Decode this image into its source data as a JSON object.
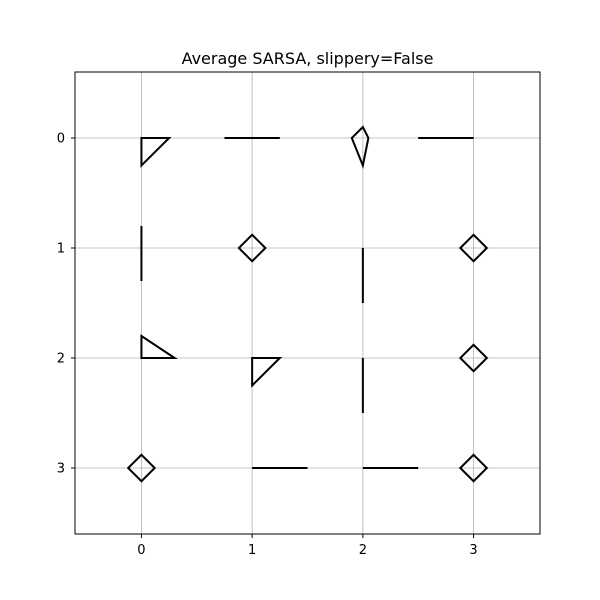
{
  "chart_data": {
    "type": "policy-grid",
    "title": "Average SARSA, slippery=False",
    "xlim": [
      -0.6,
      3.6
    ],
    "ylim": [
      -0.6,
      3.6
    ],
    "y_inverted": true,
    "grid": true,
    "x_ticks": [
      0,
      1,
      2,
      3
    ],
    "y_ticks": [
      0,
      1,
      2,
      3
    ],
    "x_tick_labels": [
      "0",
      "1",
      "2",
      "3"
    ],
    "y_tick_labels": [
      "0",
      "1",
      "2",
      "3"
    ],
    "cells": [
      {
        "row": 0,
        "col": 0,
        "shape": "polygon",
        "pts": [
          [
            0,
            0
          ],
          [
            0.25,
            0
          ],
          [
            0,
            0.25
          ]
        ]
      },
      {
        "row": 0,
        "col": 1,
        "shape": "polygon",
        "pts": [
          [
            -0.25,
            0
          ],
          [
            0.25,
            0
          ]
        ]
      },
      {
        "row": 0,
        "col": 2,
        "shape": "polygon",
        "pts": [
          [
            0,
            -0.1
          ],
          [
            0.05,
            0
          ],
          [
            0,
            0.25
          ],
          [
            -0.1,
            0
          ]
        ]
      },
      {
        "row": 0,
        "col": 3,
        "shape": "polygon",
        "pts": [
          [
            -0.5,
            0
          ],
          [
            0,
            0
          ]
        ]
      },
      {
        "row": 1,
        "col": 0,
        "shape": "polygon",
        "pts": [
          [
            0,
            -0.2
          ],
          [
            0,
            0.3
          ]
        ]
      },
      {
        "row": 1,
        "col": 1,
        "shape": "diamond"
      },
      {
        "row": 1,
        "col": 2,
        "shape": "polygon",
        "pts": [
          [
            0,
            0
          ],
          [
            0,
            0.5
          ]
        ]
      },
      {
        "row": 1,
        "col": 3,
        "shape": "diamond"
      },
      {
        "row": 2,
        "col": 0,
        "shape": "polygon",
        "pts": [
          [
            0,
            -0.2
          ],
          [
            0.3,
            0
          ],
          [
            0,
            0
          ]
        ]
      },
      {
        "row": 2,
        "col": 1,
        "shape": "polygon",
        "pts": [
          [
            0,
            0
          ],
          [
            0.25,
            0
          ],
          [
            0,
            0.25
          ]
        ]
      },
      {
        "row": 2,
        "col": 2,
        "shape": "polygon",
        "pts": [
          [
            0,
            0
          ],
          [
            0,
            0.5
          ]
        ]
      },
      {
        "row": 2,
        "col": 3,
        "shape": "diamond"
      },
      {
        "row": 3,
        "col": 0,
        "shape": "diamond"
      },
      {
        "row": 3,
        "col": 1,
        "shape": "polygon",
        "pts": [
          [
            0,
            0
          ],
          [
            0.5,
            0
          ]
        ]
      },
      {
        "row": 3,
        "col": 2,
        "shape": "polygon",
        "pts": [
          [
            0,
            0
          ],
          [
            0.5,
            0
          ]
        ]
      },
      {
        "row": 3,
        "col": 3,
        "shape": "diamond"
      }
    ]
  }
}
